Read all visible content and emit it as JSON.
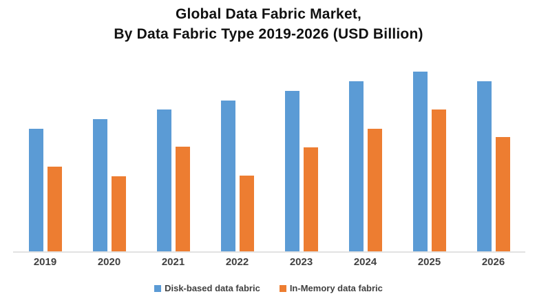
{
  "title": {
    "line1": "Global Data Fabric Market,",
    "line2": "By Data Fabric Type 2019-2026 (USD Billion)"
  },
  "chart_data": {
    "type": "bar",
    "title": "Global Data Fabric Market, By Data Fabric Type 2019-2026 (USD Billion)",
    "categories": [
      "2019",
      "2020",
      "2021",
      "2022",
      "2023",
      "2024",
      "2025",
      "2026"
    ],
    "series": [
      {
        "name": "Disk-based data fabric",
        "color": "#5B9BD5",
        "values": [
          1.78,
          1.92,
          2.06,
          2.19,
          2.33,
          2.47,
          2.61,
          2.47
        ]
      },
      {
        "name": "In-Memory data fabric",
        "color": "#ED7D31",
        "values": [
          1.23,
          1.09,
          1.52,
          1.1,
          1.51,
          1.78,
          2.06,
          1.66
        ]
      }
    ],
    "xlabel": "",
    "ylabel": "",
    "ylim": [
      0,
      2.75
    ],
    "y_axis_labels_shown": false,
    "grid": false,
    "legend_position": "bottom",
    "axis_line_color": "#D9D9D9",
    "value_units": "USD Billion (relative estimate; y-axis unlabeled in image)"
  },
  "colors": {
    "series_blue": "#5B9BD5",
    "series_orange": "#ED7D31",
    "axis_line": "#D9D9D9",
    "label_text": "#404040",
    "title_text": "#111111",
    "background": "#FFFFFF"
  }
}
